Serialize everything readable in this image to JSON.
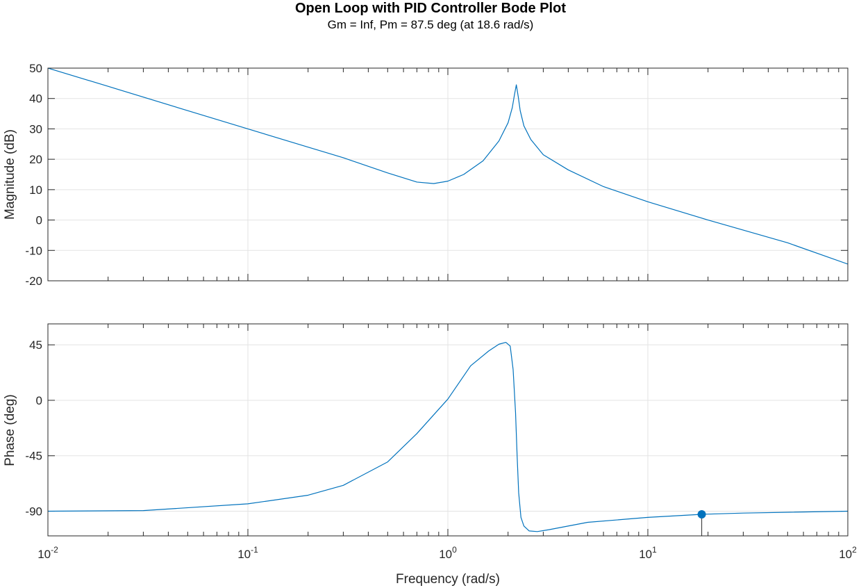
{
  "chart_data": {
    "type": "line",
    "title": "Open Loop with PID Controller Bode Plot",
    "subtitle": "Gm = Inf,  Pm = 87.5 deg (at 18.6 rad/s)",
    "xlabel": "Frequency (rad/s)",
    "xscale": "log",
    "xlim": [
      0.01,
      100
    ],
    "x_ticks": [
      {
        "base": "10",
        "exp": "-2"
      },
      {
        "base": "10",
        "exp": "-1"
      },
      {
        "base": "10",
        "exp": "0"
      },
      {
        "base": "10",
        "exp": "1"
      },
      {
        "base": "10",
        "exp": "2"
      }
    ],
    "grid": true,
    "color": "#0072BD",
    "marker_color": "#0072BD",
    "magnitude": {
      "ylabel": "Magnitude (dB)",
      "ylim": [
        -20,
        50
      ],
      "yticks": [
        "50",
        "40",
        "30",
        "20",
        "10",
        "0",
        "-10",
        "-20"
      ],
      "x": [
        0.01,
        0.02,
        0.05,
        0.1,
        0.2,
        0.3,
        0.5,
        0.7,
        0.85,
        1.0,
        1.2,
        1.5,
        1.8,
        2.0,
        2.1,
        2.15,
        2.2,
        2.25,
        2.3,
        2.4,
        2.6,
        3.0,
        4.0,
        6.0,
        10,
        20,
        50,
        100
      ],
      "values": [
        50,
        44,
        36,
        30,
        24,
        20.5,
        15.5,
        12.5,
        12.0,
        12.8,
        15,
        19.5,
        26,
        32,
        37,
        41,
        44.5,
        40.5,
        36,
        31,
        26.5,
        21.5,
        16.5,
        11,
        6,
        0,
        -7.5,
        -14.5
      ]
    },
    "phase": {
      "ylabel": "Phase (deg)",
      "ylim": [
        -110,
        62
      ],
      "yticks": [
        "45",
        "0",
        "-45",
        "-90"
      ],
      "x": [
        0.01,
        0.03,
        0.1,
        0.2,
        0.3,
        0.5,
        0.7,
        1.0,
        1.3,
        1.6,
        1.8,
        1.95,
        2.05,
        2.12,
        2.18,
        2.22,
        2.26,
        2.32,
        2.4,
        2.55,
        2.8,
        3.2,
        5,
        10,
        18.6,
        30,
        100
      ],
      "values": [
        -90,
        -89.5,
        -84,
        -77,
        -69,
        -50,
        -27,
        1,
        28,
        40,
        45.5,
        47,
        44,
        25,
        -10,
        -45,
        -75,
        -95,
        -102,
        -106,
        -106.5,
        -105,
        -99,
        -95,
        -92.5,
        -91.5,
        -90
      ],
      "marker": {
        "x": 18.6,
        "y": -92.5
      }
    }
  }
}
